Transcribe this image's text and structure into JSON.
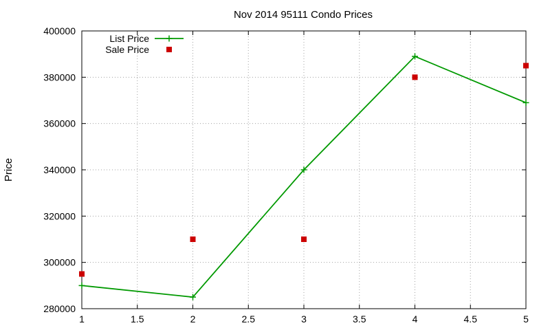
{
  "chart_data": {
    "type": "line",
    "title": "Nov 2014 95111 Condo Prices",
    "xlabel": "",
    "ylabel": "Price",
    "xlim": [
      1,
      5
    ],
    "ylim": [
      280000,
      400000
    ],
    "xticks": [
      "1",
      "1.5",
      "2",
      "2.5",
      "3",
      "3.5",
      "4",
      "4.5",
      "5"
    ],
    "yticks": [
      "280000",
      "300000",
      "320000",
      "340000",
      "360000",
      "380000",
      "400000"
    ],
    "grid": true,
    "legend_position": "top-left",
    "series": [
      {
        "name": "List Price",
        "style": "line-with-plus-markers",
        "color": "#009900",
        "x": [
          1,
          2,
          3,
          4,
          5
        ],
        "values": [
          290000,
          285000,
          340000,
          389000,
          369000
        ]
      },
      {
        "name": "Sale Price",
        "style": "square-points",
        "color": "#cc0000",
        "x": [
          1,
          2,
          3,
          4,
          5
        ],
        "values": [
          295000,
          310000,
          310000,
          380000,
          385000
        ]
      }
    ]
  }
}
